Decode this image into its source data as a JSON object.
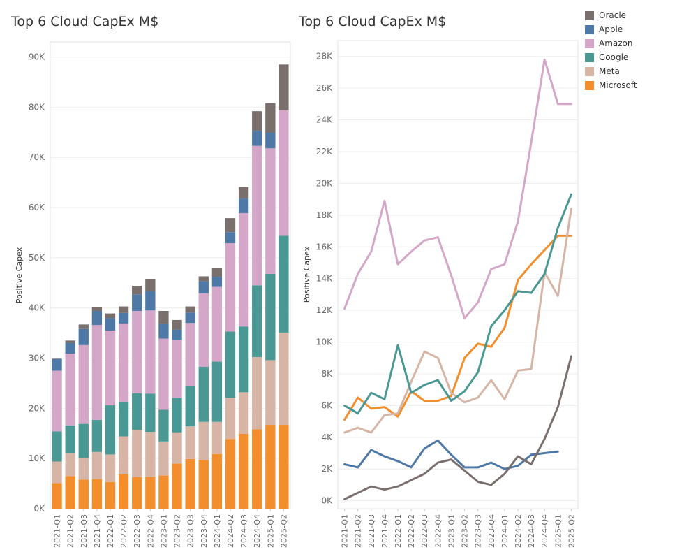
{
  "colors": {
    "Oracle": "#79706e",
    "Apple": "#4e79a7",
    "Amazon": "#d4a6c8",
    "Google": "#499894",
    "Meta": "#d7b5a6",
    "Microsoft": "#f28e2b"
  },
  "legend": {
    "items": [
      {
        "label": "Oracle",
        "color": "#79706e"
      },
      {
        "label": "Apple",
        "color": "#4e79a7"
      },
      {
        "label": "Amazon",
        "color": "#d4a6c8"
      },
      {
        "label": "Google",
        "color": "#499894"
      },
      {
        "label": "Meta",
        "color": "#d7b5a6"
      },
      {
        "label": "Microsoft",
        "color": "#f28e2b"
      }
    ]
  },
  "chart_data": [
    {
      "type": "bar",
      "stacked": true,
      "title": "Top 6 Cloud CapEx M$",
      "ylabel": "Positive Capex",
      "ylim": [
        0,
        93000
      ],
      "yticks": [
        {
          "value": 0,
          "label": "0K"
        },
        {
          "value": 10000,
          "label": "10K"
        },
        {
          "value": 20000,
          "label": "20K"
        },
        {
          "value": 30000,
          "label": "30K"
        },
        {
          "value": 40000,
          "label": "40K"
        },
        {
          "value": 50000,
          "label": "50K"
        },
        {
          "value": 60000,
          "label": "60K"
        },
        {
          "value": 70000,
          "label": "70K"
        },
        {
          "value": 80000,
          "label": "80K"
        },
        {
          "value": 90000,
          "label": "90K"
        }
      ],
      "categories": [
        "2021-Q1",
        "2021-Q2",
        "2021-Q3",
        "2021-Q4",
        "2022-Q1",
        "2022-Q2",
        "2022-Q3",
        "2022-Q4",
        "2023-Q1",
        "2023-Q2",
        "2023-Q3",
        "2023-Q4",
        "2024-Q1",
        "2024-Q2",
        "2024-Q3",
        "2024-Q4",
        "2025-Q1",
        "2025-Q2"
      ],
      "series": [
        {
          "name": "Microsoft",
          "values": [
            5100,
            6500,
            5800,
            5900,
            5300,
            6900,
            6300,
            6300,
            6600,
            9000,
            9900,
            9700,
            10900,
            13900,
            14900,
            15800,
            16700,
            16700
          ]
        },
        {
          "name": "Meta",
          "values": [
            4300,
            4600,
            4300,
            5400,
            5500,
            7500,
            9400,
            9000,
            6800,
            6200,
            6500,
            7600,
            6400,
            8200,
            8300,
            14400,
            12900,
            18400
          ]
        },
        {
          "name": "Google",
          "values": [
            6000,
            5500,
            6800,
            6400,
            9800,
            6800,
            7300,
            7600,
            6300,
            6900,
            8100,
            11000,
            12000,
            13200,
            13100,
            14300,
            17200,
            19300
          ]
        },
        {
          "name": "Amazon",
          "values": [
            12100,
            14300,
            15700,
            18900,
            14900,
            15700,
            16400,
            16600,
            14200,
            11500,
            12500,
            14600,
            14900,
            17600,
            22600,
            27800,
            25000,
            25000
          ]
        },
        {
          "name": "Apple",
          "values": [
            2300,
            2100,
            3200,
            2800,
            2500,
            2100,
            3300,
            3800,
            2900,
            2100,
            2100,
            2400,
            2000,
            2200,
            2900,
            3000,
            3100,
            0
          ]
        },
        {
          "name": "Oracle",
          "values": [
            100,
            500,
            900,
            700,
            900,
            1300,
            1700,
            2400,
            2600,
            1900,
            1200,
            1000,
            1700,
            2800,
            2300,
            3900,
            5900,
            9100
          ]
        }
      ]
    },
    {
      "type": "line",
      "title": "Top 6 Cloud CapEx M$",
      "ylabel": "Positive Capex",
      "ylim": [
        -500,
        29000
      ],
      "yticks": [
        {
          "value": 0,
          "label": "0K"
        },
        {
          "value": 2000,
          "label": "2K"
        },
        {
          "value": 4000,
          "label": "4K"
        },
        {
          "value": 6000,
          "label": "6K"
        },
        {
          "value": 8000,
          "label": "8K"
        },
        {
          "value": 10000,
          "label": "10K"
        },
        {
          "value": 12000,
          "label": "12K"
        },
        {
          "value": 14000,
          "label": "14K"
        },
        {
          "value": 16000,
          "label": "16K"
        },
        {
          "value": 18000,
          "label": "18K"
        },
        {
          "value": 20000,
          "label": "20K"
        },
        {
          "value": 22000,
          "label": "22K"
        },
        {
          "value": 24000,
          "label": "24K"
        },
        {
          "value": 26000,
          "label": "26K"
        },
        {
          "value": 28000,
          "label": "28K"
        }
      ],
      "categories": [
        "2021-Q1",
        "2021-Q2",
        "2021-Q3",
        "2021-Q4",
        "2022-Q1",
        "2022-Q2",
        "2022-Q3",
        "2022-Q4",
        "2023-Q1",
        "2023-Q2",
        "2023-Q3",
        "2023-Q4",
        "2024-Q1",
        "2024-Q2",
        "2024-Q3",
        "2024-Q4",
        "2025-Q1",
        "2025-Q2"
      ],
      "series": [
        {
          "name": "Microsoft",
          "values": [
            5100,
            6500,
            5800,
            5900,
            5300,
            6900,
            6300,
            6300,
            6600,
            9000,
            9900,
            9700,
            10900,
            13900,
            14900,
            15800,
            16700,
            16700
          ]
        },
        {
          "name": "Meta",
          "values": [
            4300,
            4600,
            4300,
            5400,
            5500,
            7500,
            9400,
            9000,
            6800,
            6200,
            6500,
            7600,
            6400,
            8200,
            8300,
            14400,
            12900,
            18400
          ]
        },
        {
          "name": "Google",
          "values": [
            6000,
            5500,
            6800,
            6400,
            9800,
            6800,
            7300,
            7600,
            6300,
            6900,
            8100,
            11000,
            12000,
            13200,
            13100,
            14300,
            17200,
            19300
          ]
        },
        {
          "name": "Amazon",
          "values": [
            12100,
            14300,
            15700,
            18900,
            14900,
            15700,
            16400,
            16600,
            14200,
            11500,
            12500,
            14600,
            14900,
            17600,
            22600,
            27800,
            25000,
            25000
          ]
        },
        {
          "name": "Apple",
          "values": [
            2300,
            2100,
            3200,
            2800,
            2500,
            2100,
            3300,
            3800,
            2900,
            2100,
            2100,
            2400,
            2000,
            2200,
            2900,
            3000,
            3100,
            null
          ]
        },
        {
          "name": "Oracle",
          "values": [
            100,
            500,
            900,
            700,
            900,
            1300,
            1700,
            2400,
            2600,
            1900,
            1200,
            1000,
            1700,
            2800,
            2300,
            3900,
            5900,
            9100
          ]
        }
      ]
    }
  ]
}
